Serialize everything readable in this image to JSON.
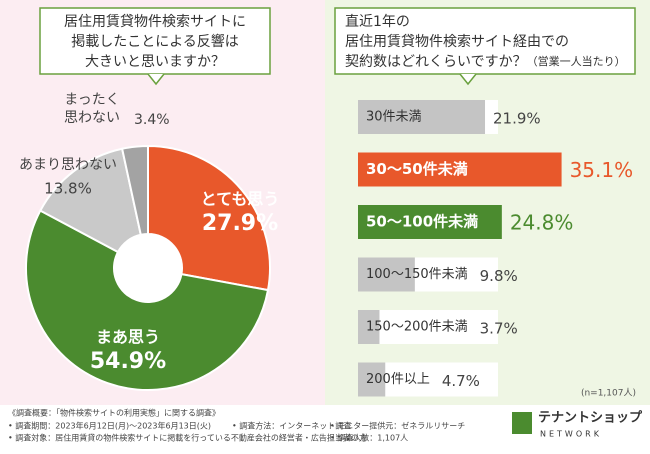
{
  "chart_data": [
    {
      "type": "pie",
      "title": [
        "居住用賃貸物件検索サイトに",
        "掲載したことによる反響は",
        "大きいと思いますか？"
      ],
      "categories": [
        [
          "とても思う"
        ],
        [
          "まあ思う"
        ],
        [
          "あまり思わない"
        ],
        [
          "まったく",
          "思わない"
        ]
      ],
      "values": [
        27.9,
        54.9,
        13.8,
        3.4
      ],
      "value_labels": [
        "27.9%",
        "54.9%",
        "13.8%",
        "3.4%"
      ],
      "colors": [
        "#e8582b",
        "#4b8b2f",
        "#c9c9c9",
        "#a3a3a3"
      ]
    },
    {
      "type": "hbar",
      "title": [
        "直近1年の",
        "居住用賃貸物件検索サイト経由での",
        "契約数はどれくらいですか？"
      ],
      "subtitle": "（営業一人当たり）",
      "categories": [
        "30件未満",
        "30〜50件未満",
        "50〜100件未満",
        "100〜150件未満",
        "150〜200件未満",
        "200件以上"
      ],
      "values": [
        21.9,
        35.1,
        24.8,
        9.8,
        3.7,
        4.7
      ],
      "value_labels": [
        "21.9%",
        "35.1%",
        "24.8%",
        "9.8%",
        "3.7%",
        "4.7%"
      ],
      "colors": [
        "#c4c4c4",
        "#e8582b",
        "#4b8b2f",
        "#c4c4c4",
        "#c4c4c4",
        "#c4c4c4"
      ],
      "note": "(n=1,107人)"
    }
  ],
  "footer": {
    "heading": "《調査概要：「物件検索サイトの利用実態」に関する調査》",
    "items": [
      "• 調査期間：2023年6月12日(月)〜2023年6月13日(火)",
      "• 調査方法：インターネット調査",
      "• モニター提供元：ゼネラルリサーチ",
      "• 調査対象：居住用賃貸の物件検索サイトに掲載を行っている不動産会社の経営者・広告担当者の方",
      "• 調査人数：1,107人"
    ]
  },
  "logo": {
    "name": "テナントショップ",
    "sub": "NETWORK"
  }
}
